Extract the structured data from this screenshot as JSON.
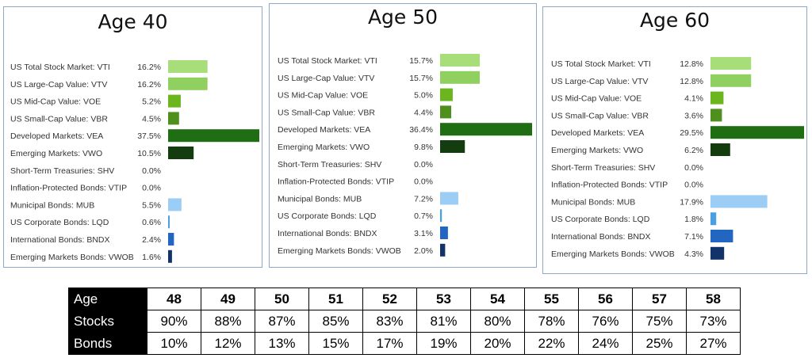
{
  "colors": {
    "panel_border": "#8fa8c8",
    "table_header_bg": "#000000",
    "table_header_text": "#ffffff",
    "bar_colors": [
      "#a8de7a",
      "#90d060",
      "#6bb51f",
      "#4f8f1e",
      "#1f6e14",
      "#133d0f",
      "#000000",
      "#000000",
      "#9ccdf4",
      "#4a9fe0",
      "#2266c2",
      "#12336a"
    ]
  },
  "chart_data": [
    {
      "type": "bar",
      "orientation": "horizontal",
      "title": "Age 40",
      "categories": [
        "US Total Stock Market: VTI",
        "US Large-Cap Value: VTV",
        "US Mid-Cap Value: VOE",
        "US Small-Cap Value: VBR",
        "Developed Markets: VEA",
        "Emerging Markets: VWO",
        "Short-Term Treasuries: SHV",
        "Inflation-Protected Bonds: VTIP",
        "Municipal Bonds: MUB",
        "US Corporate Bonds: LQD",
        "International Bonds: BNDX",
        "Emerging Markets Bonds: VWOB"
      ],
      "values": [
        16.2,
        16.2,
        5.2,
        4.5,
        37.5,
        10.5,
        0.0,
        0.0,
        5.5,
        0.6,
        2.4,
        1.6
      ],
      "value_labels": [
        "16.2%",
        "16.2%",
        "5.2%",
        "4.5%",
        "37.5%",
        "10.5%",
        "0.0%",
        "0.0%",
        "5.5%",
        "0.6%",
        "2.4%",
        "1.6%"
      ],
      "xlim": [
        0,
        37.5
      ]
    },
    {
      "type": "bar",
      "orientation": "horizontal",
      "title": "Age 50",
      "categories": [
        "US Total Stock Market: VTI",
        "US Large-Cap Value: VTV",
        "US Mid-Cap Value: VOE",
        "US Small-Cap Value: VBR",
        "Developed Markets: VEA",
        "Emerging Markets: VWO",
        "Short-Term Treasuries: SHV",
        "Inflation-Protected Bonds: VTIP",
        "Municipal Bonds: MUB",
        "US Corporate Bonds: LQD",
        "International Bonds: BNDX",
        "Emerging Markets Bonds: VWOB"
      ],
      "values": [
        15.7,
        15.7,
        5.0,
        4.4,
        36.4,
        9.8,
        0.0,
        0.0,
        7.2,
        0.7,
        3.1,
        2.0
      ],
      "value_labels": [
        "15.7%",
        "15.7%",
        "5.0%",
        "4.4%",
        "36.4%",
        "9.8%",
        "0.0%",
        "0.0%",
        "7.2%",
        "0.7%",
        "3.1%",
        "2.0%"
      ],
      "xlim": [
        0,
        36.4
      ]
    },
    {
      "type": "bar",
      "orientation": "horizontal",
      "title": "Age 60",
      "categories": [
        "US Total Stock Market: VTI",
        "US Large-Cap Value: VTV",
        "US Mid-Cap Value: VOE",
        "US Small-Cap Value: VBR",
        "Developed Markets: VEA",
        "Emerging Markets: VWO",
        "Short-Term Treasuries: SHV",
        "Inflation-Protected Bonds: VTIP",
        "Municipal Bonds: MUB",
        "US Corporate Bonds: LQD",
        "International Bonds: BNDX",
        "Emerging Markets Bonds: VWOB"
      ],
      "values": [
        12.8,
        12.8,
        4.1,
        3.6,
        29.5,
        6.2,
        0.0,
        0.0,
        17.9,
        1.8,
        7.1,
        4.3
      ],
      "value_labels": [
        "12.8%",
        "12.8%",
        "4.1%",
        "3.6%",
        "29.5%",
        "6.2%",
        "0.0%",
        "0.0%",
        "17.9%",
        "1.8%",
        "7.1%",
        "4.3%"
      ],
      "xlim": [
        0,
        29.5
      ]
    },
    {
      "type": "table",
      "row_headers": [
        "Age",
        "Stocks",
        "Bonds"
      ],
      "ages": [
        "48",
        "49",
        "50",
        "51",
        "52",
        "53",
        "54",
        "55",
        "56",
        "57",
        "58"
      ],
      "stocks": [
        "90%",
        "88%",
        "87%",
        "85%",
        "83%",
        "81%",
        "80%",
        "78%",
        "76%",
        "75%",
        "73%"
      ],
      "bonds": [
        "10%",
        "12%",
        "13%",
        "15%",
        "17%",
        "19%",
        "20%",
        "22%",
        "24%",
        "25%",
        "27%"
      ]
    }
  ]
}
